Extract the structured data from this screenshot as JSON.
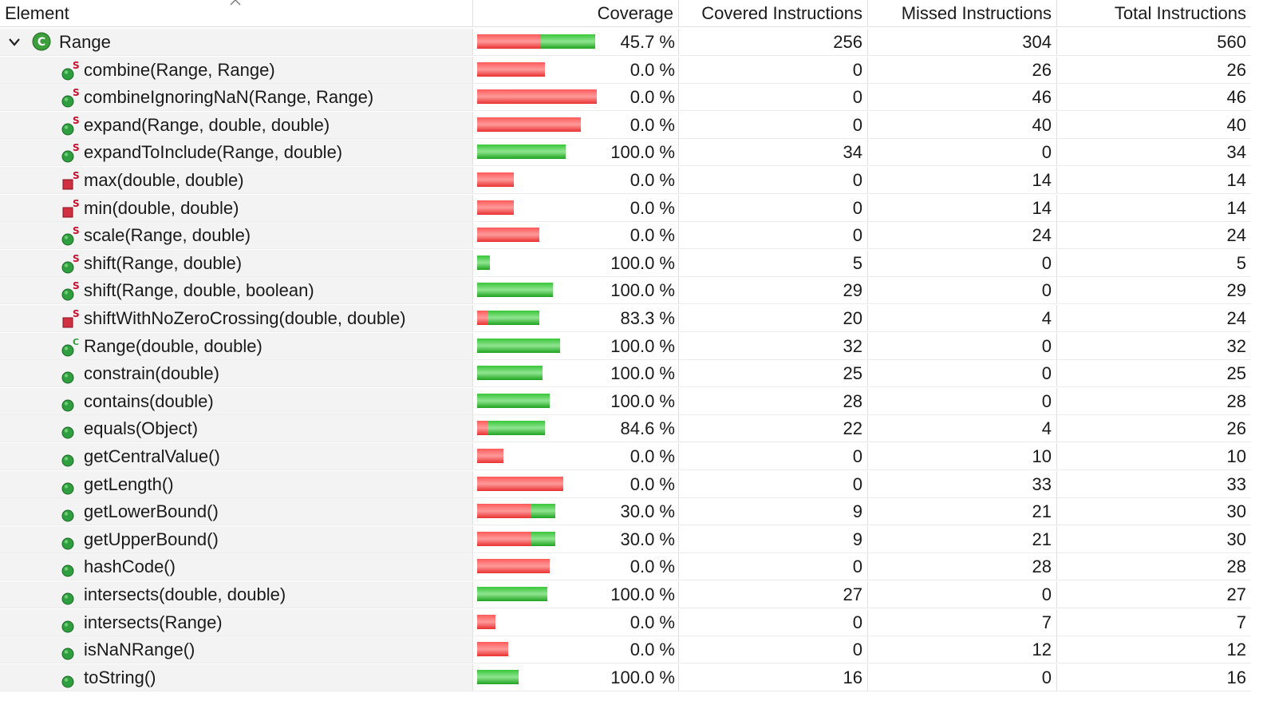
{
  "headers": {
    "element": "Element",
    "coverage": "Coverage",
    "covered": "Covered Instructions",
    "missed": "Missed Instructions",
    "total": "Total Instructions"
  },
  "root": {
    "name": "Range",
    "icon": "class-icon",
    "coverage": "45.7 %",
    "covered": "256",
    "missed": "304",
    "total": "560"
  },
  "rows": [
    {
      "name": "combine(Range, Range)",
      "icon": "static-public-method-icon",
      "coverage": "0.0 %",
      "covered": "0",
      "missed": "26",
      "total": "26"
    },
    {
      "name": "combineIgnoringNaN(Range, Range)",
      "icon": "static-public-method-icon",
      "coverage": "0.0 %",
      "covered": "0",
      "missed": "46",
      "total": "46"
    },
    {
      "name": "expand(Range, double, double)",
      "icon": "static-public-method-icon",
      "coverage": "0.0 %",
      "covered": "0",
      "missed": "40",
      "total": "40"
    },
    {
      "name": "expandToInclude(Range, double)",
      "icon": "static-public-method-icon",
      "coverage": "100.0 %",
      "covered": "34",
      "missed": "0",
      "total": "34"
    },
    {
      "name": "max(double, double)",
      "icon": "static-private-method-icon",
      "coverage": "0.0 %",
      "covered": "0",
      "missed": "14",
      "total": "14"
    },
    {
      "name": "min(double, double)",
      "icon": "static-private-method-icon",
      "coverage": "0.0 %",
      "covered": "0",
      "missed": "14",
      "total": "14"
    },
    {
      "name": "scale(Range, double)",
      "icon": "static-public-method-icon",
      "coverage": "0.0 %",
      "covered": "0",
      "missed": "24",
      "total": "24"
    },
    {
      "name": "shift(Range, double)",
      "icon": "static-public-method-icon",
      "coverage": "100.0 %",
      "covered": "5",
      "missed": "0",
      "total": "5"
    },
    {
      "name": "shift(Range, double, boolean)",
      "icon": "static-public-method-icon",
      "coverage": "100.0 %",
      "covered": "29",
      "missed": "0",
      "total": "29"
    },
    {
      "name": "shiftWithNoZeroCrossing(double, double)",
      "icon": "static-private-method-icon",
      "coverage": "83.3 %",
      "covered": "20",
      "missed": "4",
      "total": "24"
    },
    {
      "name": "Range(double, double)",
      "icon": "constructor-icon",
      "coverage": "100.0 %",
      "covered": "32",
      "missed": "0",
      "total": "32"
    },
    {
      "name": "constrain(double)",
      "icon": "public-method-icon",
      "coverage": "100.0 %",
      "covered": "25",
      "missed": "0",
      "total": "25"
    },
    {
      "name": "contains(double)",
      "icon": "public-method-icon",
      "coverage": "100.0 %",
      "covered": "28",
      "missed": "0",
      "total": "28"
    },
    {
      "name": "equals(Object)",
      "icon": "public-method-icon",
      "coverage": "84.6 %",
      "covered": "22",
      "missed": "4",
      "total": "26"
    },
    {
      "name": "getCentralValue()",
      "icon": "public-method-icon",
      "coverage": "0.0 %",
      "covered": "0",
      "missed": "10",
      "total": "10"
    },
    {
      "name": "getLength()",
      "icon": "public-method-icon",
      "coverage": "0.0 %",
      "covered": "0",
      "missed": "33",
      "total": "33"
    },
    {
      "name": "getLowerBound()",
      "icon": "public-method-icon",
      "coverage": "30.0 %",
      "covered": "9",
      "missed": "21",
      "total": "30"
    },
    {
      "name": "getUpperBound()",
      "icon": "public-method-icon",
      "coverage": "30.0 %",
      "covered": "9",
      "missed": "21",
      "total": "30"
    },
    {
      "name": "hashCode()",
      "icon": "public-method-icon",
      "coverage": "0.0 %",
      "covered": "0",
      "missed": "28",
      "total": "28"
    },
    {
      "name": "intersects(double, double)",
      "icon": "public-method-icon",
      "coverage": "100.0 %",
      "covered": "27",
      "missed": "0",
      "total": "27"
    },
    {
      "name": "intersects(Range)",
      "icon": "public-method-icon",
      "coverage": "0.0 %",
      "covered": "0",
      "missed": "7",
      "total": "7"
    },
    {
      "name": "isNaNRange()",
      "icon": "public-method-icon",
      "coverage": "0.0 %",
      "covered": "0",
      "missed": "12",
      "total": "12"
    },
    {
      "name": "toString()",
      "icon": "public-method-icon",
      "coverage": "100.0 %",
      "covered": "16",
      "missed": "0",
      "total": "16"
    }
  ],
  "colors": {
    "missed_bar": "#f04040",
    "covered_bar": "#33bb33",
    "method_icon": "#2e9e3e",
    "private_icon": "#d03040",
    "static_marker": "#c8102e",
    "class_icon": "#3c9e3c"
  }
}
